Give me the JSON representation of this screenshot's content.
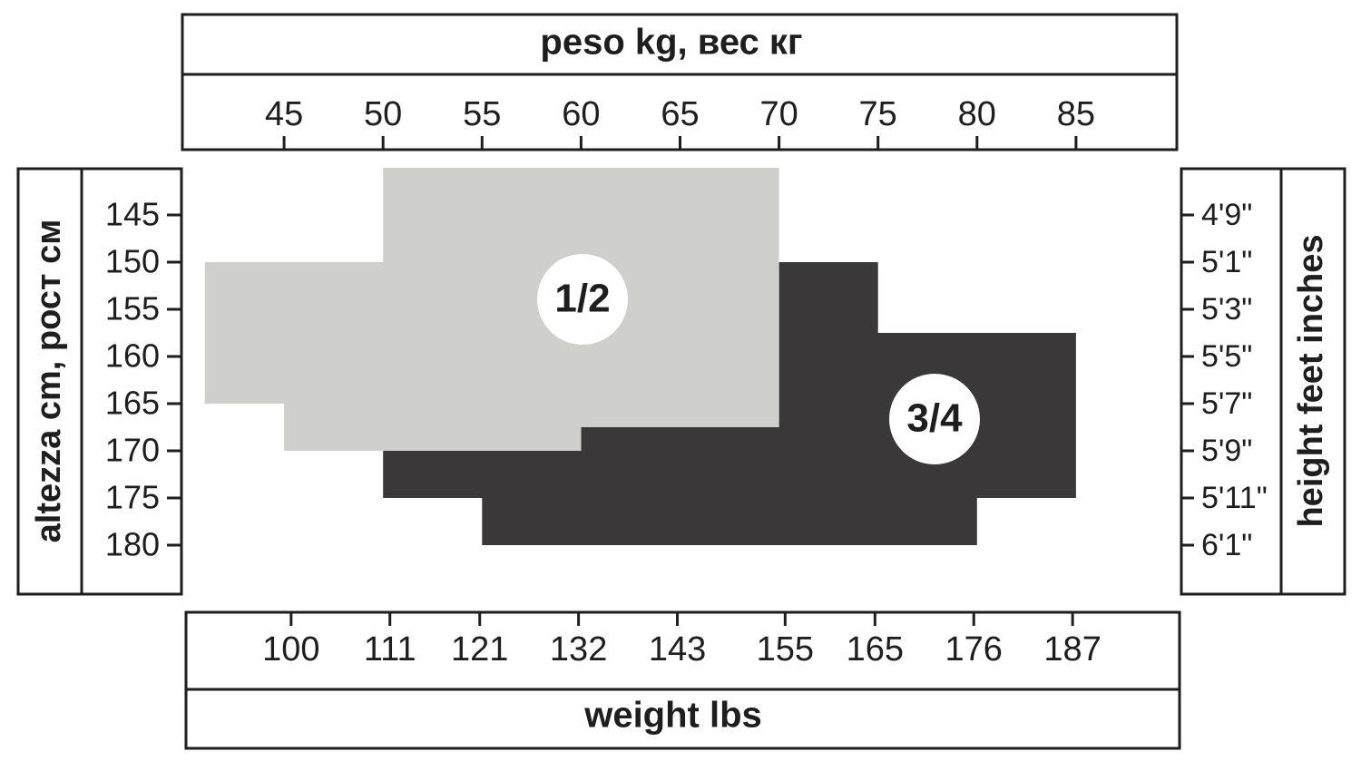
{
  "chart_data": {
    "type": "size-chart",
    "title": "peso kg, вес кг",
    "xlabel": "weight lbs",
    "ylabel": "altezza cm, рост см",
    "y2label": "height feet inches",
    "xlim": [
      40,
      90
    ],
    "xticks": [
      45,
      50,
      55,
      60,
      65,
      70,
      75,
      80,
      85
    ],
    "x2lim": [
      88.2,
      198.4
    ],
    "x2ticks": [
      100,
      111,
      121,
      132,
      143,
      155,
      165,
      176,
      187
    ],
    "ylim": [
      140,
      185
    ],
    "yticks": [
      145,
      150,
      155,
      160,
      165,
      170,
      175,
      180
    ],
    "y2categories": [
      "4'9\"",
      "5'1\"",
      "5'3\"",
      "5'5\"",
      "5'7\"",
      "5'9\"",
      "5'11\"",
      "6'1\""
    ],
    "regions": [
      {
        "name": "3/4",
        "color": "#3a3838",
        "x": [
          70,
          75,
          75,
          85,
          85,
          80,
          80,
          55,
          55,
          50,
          50,
          60,
          60,
          70
        ],
        "y": [
          150,
          150,
          157.5,
          157.5,
          175,
          175,
          180,
          180,
          175,
          175,
          170,
          170,
          167.5,
          167.5
        ]
      },
      {
        "name": "1/2",
        "color": "#cfcfcb",
        "x": [
          50,
          70,
          70,
          60,
          60,
          45,
          45,
          41,
          41,
          50
        ],
        "y": [
          140,
          140,
          167.5,
          167.5,
          170,
          170,
          165,
          165,
          150,
          150
        ]
      }
    ]
  }
}
